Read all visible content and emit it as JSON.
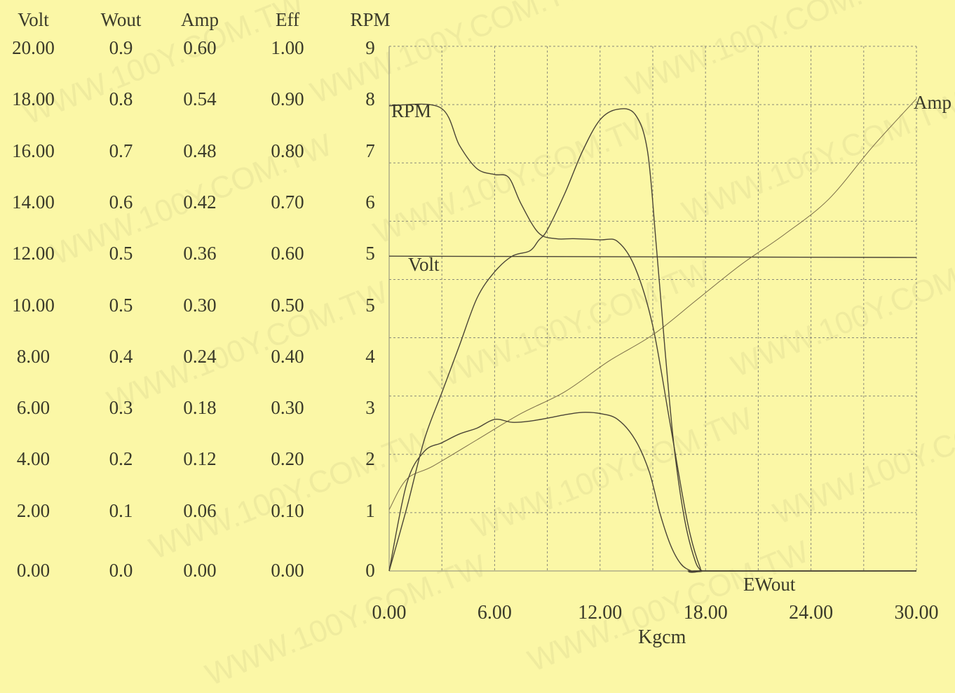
{
  "watermark": "WWW.100Y.COM.TW",
  "colors": {
    "background": "#fbf7a6",
    "ink": "#3a3a2a",
    "grid": "#8a8a7a"
  },
  "table": {
    "headers": {
      "volt": "Volt",
      "wout": "Wout",
      "amp": "Amp",
      "eff": "Eff",
      "rpm": "RPM"
    },
    "rows": [
      {
        "volt": "20.00",
        "wout": "0.9",
        "amp": "0.60",
        "eff": "1.00",
        "rpm": "9"
      },
      {
        "volt": "18.00",
        "wout": "0.8",
        "amp": "0.54",
        "eff": "0.90",
        "rpm": "8"
      },
      {
        "volt": "16.00",
        "wout": "0.7",
        "amp": "0.48",
        "eff": "0.80",
        "rpm": "7"
      },
      {
        "volt": "14.00",
        "wout": "0.6",
        "amp": "0.42",
        "eff": "0.70",
        "rpm": "6"
      },
      {
        "volt": "12.00",
        "wout": "0.5",
        "amp": "0.36",
        "eff": "0.60",
        "rpm": "5"
      },
      {
        "volt": "10.00",
        "wout": "0.5",
        "amp": "0.30",
        "eff": "0.50",
        "rpm": "5"
      },
      {
        "volt": "8.00",
        "wout": "0.4",
        "amp": "0.24",
        "eff": "0.40",
        "rpm": "4"
      },
      {
        "volt": "6.00",
        "wout": "0.3",
        "amp": "0.18",
        "eff": "0.30",
        "rpm": "3"
      },
      {
        "volt": "4.00",
        "wout": "0.2",
        "amp": "0.12",
        "eff": "0.20",
        "rpm": "2"
      },
      {
        "volt": "2.00",
        "wout": "0.1",
        "amp": "0.06",
        "eff": "0.10",
        "rpm": "1"
      },
      {
        "volt": "0.00",
        "wout": "0.0",
        "amp": "0.00",
        "eff": "0.00",
        "rpm": "0"
      }
    ]
  },
  "chart_data": {
    "type": "line",
    "xlabel": "Kgcm",
    "x_tick_labels": [
      "0.00",
      "6.00",
      "12.00",
      "18.00",
      "24.00",
      "30.00"
    ],
    "xlim": [
      0,
      30
    ],
    "ylim_rpm_scale": [
      0,
      9
    ],
    "grid": true,
    "series_labels": {
      "rpm": "RPM",
      "volt": "Volt",
      "amp": "Amp",
      "eff_wout": "EWout"
    },
    "series": [
      {
        "name": "RPM",
        "scale": "RPM",
        "x": [
          0,
          2.9,
          4,
          5,
          6,
          6.8,
          7.5,
          8.5,
          9.5,
          10.5,
          12,
          13,
          14,
          15,
          16,
          17,
          17.7,
          18,
          30
        ],
        "y": [
          7.98,
          7.95,
          7.3,
          6.9,
          6.8,
          6.75,
          6.3,
          5.8,
          5.7,
          5.7,
          5.68,
          5.65,
          5.2,
          4.2,
          2.5,
          0.8,
          0.05,
          0.0,
          0.0
        ]
      },
      {
        "name": "Volt",
        "scale": "Volt",
        "x": [
          0,
          30
        ],
        "y": [
          12.0,
          11.95
        ]
      },
      {
        "name": "Amp",
        "scale": "Amp",
        "x": [
          0,
          1,
          2.5,
          5,
          7.5,
          10,
          12.5,
          15,
          17.5,
          20,
          22.5,
          25,
          27.5,
          30
        ],
        "y": [
          0.07,
          0.105,
          0.12,
          0.15,
          0.18,
          0.205,
          0.24,
          0.27,
          0.31,
          0.35,
          0.385,
          0.425,
          0.485,
          0.54
        ]
      },
      {
        "name": "Eff",
        "scale": "Eff",
        "x": [
          0,
          1,
          2,
          3,
          4,
          5,
          6,
          7,
          8,
          8.5,
          9,
          10,
          11,
          12,
          13,
          14,
          14.7,
          15.2,
          15.7,
          16.2,
          16.8,
          17.4,
          17.8,
          18,
          30
        ],
        "y": [
          0.0,
          0.12,
          0.25,
          0.34,
          0.43,
          0.52,
          0.57,
          0.6,
          0.61,
          0.63,
          0.65,
          0.72,
          0.8,
          0.86,
          0.88,
          0.87,
          0.8,
          0.62,
          0.42,
          0.24,
          0.1,
          0.02,
          0.0,
          0.0,
          0.0
        ]
      },
      {
        "name": "Wout",
        "scale": "Wout",
        "x": [
          0,
          1,
          2,
          3,
          4,
          5,
          6,
          7,
          8,
          9,
          10,
          11,
          12,
          13,
          14,
          14.8,
          15.4,
          16,
          16.6,
          17.2,
          17.6,
          18,
          30
        ],
        "y": [
          0.0,
          0.15,
          0.205,
          0.22,
          0.235,
          0.245,
          0.26,
          0.255,
          0.257,
          0.262,
          0.268,
          0.272,
          0.27,
          0.26,
          0.225,
          0.17,
          0.1,
          0.045,
          0.012,
          0.0,
          0.0,
          0.0,
          0.0
        ]
      }
    ]
  }
}
